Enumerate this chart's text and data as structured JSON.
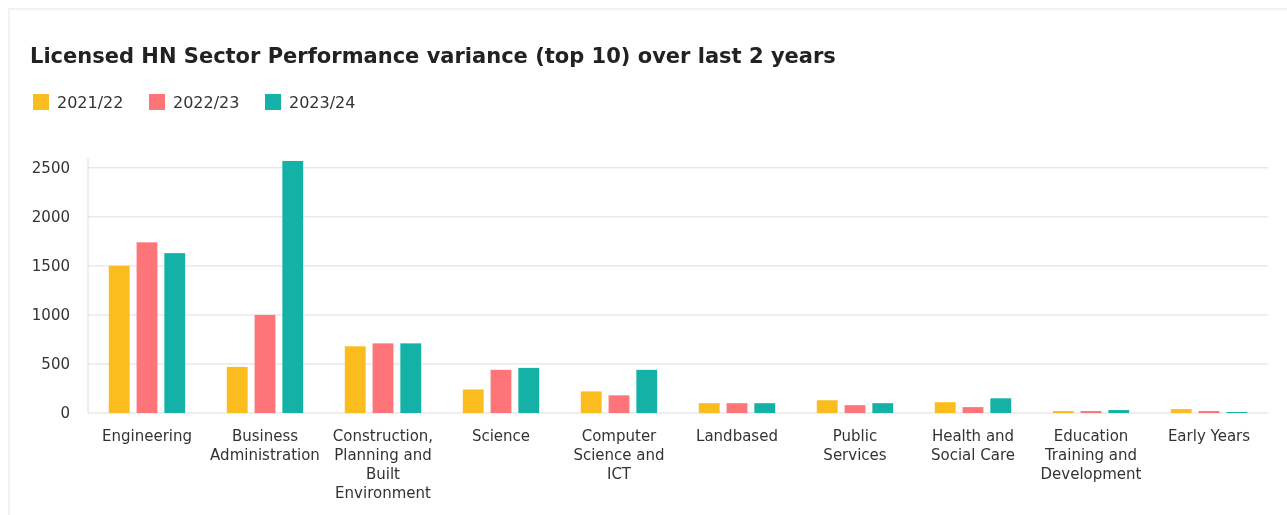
{
  "chart_data": {
    "type": "bar",
    "title": "Licensed HN Sector Performance variance (top 10) over last 2 years",
    "categories": [
      "Engineering",
      "Business Administration",
      "Construction, Planning and Built Environment",
      "Science",
      "Computer Science and ICT",
      "Landbased",
      "Public Services",
      "Health and Social Care",
      "Education Training and Development",
      "Early Years"
    ],
    "series": [
      {
        "name": "2021/22",
        "color": "#fbbc1e",
        "values": [
          1500,
          470,
          680,
          240,
          220,
          100,
          130,
          110,
          20,
          40
        ]
      },
      {
        "name": "2022/23",
        "color": "#fd7479",
        "values": [
          1740,
          1000,
          710,
          440,
          180,
          100,
          80,
          60,
          20,
          20
        ]
      },
      {
        "name": "2023/24",
        "color": "#14b2a6",
        "values": [
          1630,
          2570,
          710,
          460,
          440,
          100,
          100,
          150,
          30,
          10
        ]
      }
    ],
    "ylim": [
      0,
      2600
    ],
    "yticks": [
      0,
      500,
      1000,
      1500,
      2000,
      2500
    ],
    "grid": "y",
    "legend": "top left"
  }
}
